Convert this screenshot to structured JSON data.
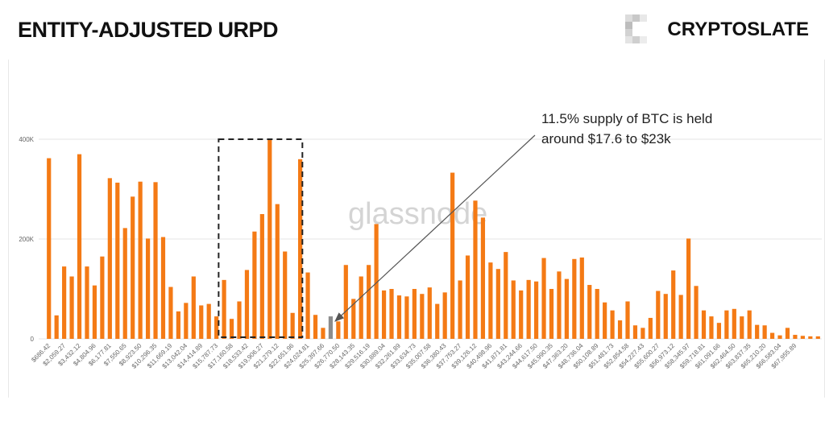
{
  "header": {
    "title": "ENTITY-ADJUSTED URPD",
    "brand": "CRYPTOSLATE"
  },
  "colors": {
    "bar": "#f47a15",
    "highlight_bar": "#8c8c8c",
    "gridline": "#e6e6e6"
  },
  "chart_data": {
    "type": "bar",
    "title": "",
    "xlabel": "",
    "ylabel": "",
    "ylim": [
      0,
      400000
    ],
    "yticks": [
      {
        "value": 0,
        "label": "0"
      },
      {
        "value": 200000,
        "label": "200K"
      },
      {
        "value": 400000,
        "label": "400K"
      }
    ],
    "x_tick_labels": [
      "$686.42",
      "$2,059.27",
      "$3,432.12",
      "$4,804.96",
      "$6,177.81",
      "$7,550.65",
      "$8,923.50",
      "$10,296.35",
      "$11,669.19",
      "$13,042.04",
      "$14,414.89",
      "$15,787.73",
      "$17,160.58",
      "$18,533.42",
      "$19,906.27",
      "$21,279.12",
      "$22,651.96",
      "$24,024.81",
      "$25,397.66",
      "$26,770.50",
      "$28,143.35",
      "$29,516.19",
      "$30,889.04",
      "$32,261.89",
      "$33,634.73",
      "$35,007.58",
      "$36,380.43",
      "$37,753.27",
      "$39,126.12",
      "$40,498.96",
      "$41,871.81",
      "$43,244.66",
      "$44,617.50",
      "$45,990.35",
      "$47,363.20",
      "$48,736.04",
      "$50,108.89",
      "$51,481.73",
      "$52,854.58",
      "$54,227.43",
      "$55,600.27",
      "$56,973.12",
      "$58,345.97",
      "$59,718.81",
      "$61,091.66",
      "$62,464.50",
      "$63,837.35",
      "$65,210.20",
      "$66,583.04",
      "$67,955.89"
    ],
    "highlight_index": 37,
    "values": [
      362000,
      47000,
      145000,
      125000,
      370000,
      145000,
      107000,
      165000,
      322000,
      313000,
      222000,
      285000,
      315000,
      201000,
      314000,
      204000,
      104000,
      55000,
      72000,
      125000,
      67000,
      70000,
      45000,
      118000,
      40000,
      75000,
      138000,
      215000,
      250000,
      400000,
      270000,
      175000,
      52000,
      360000,
      133000,
      48000,
      22000,
      45000,
      35000,
      148000,
      80000,
      125000,
      148000,
      230000,
      97000,
      100000,
      87000,
      85000,
      100000,
      90000,
      103000,
      70000,
      93000,
      333000,
      117000,
      167000,
      277000,
      243000,
      153000,
      140000,
      174000,
      117000,
      97000,
      118000,
      115000,
      162000,
      100000,
      135000,
      120000,
      160000,
      163000,
      108000,
      100000,
      73000,
      57000,
      37000,
      75000,
      27000,
      22000,
      42000,
      96000,
      90000,
      137000,
      88000,
      201000,
      106000,
      57000,
      45000,
      32000,
      57000,
      60000,
      45000,
      57000,
      28000,
      27000,
      12000,
      7000,
      22000,
      8000,
      6000,
      5000,
      5000
    ]
  },
  "annotation": {
    "text": "11.5% supply of BTC is held around $17.6 to $23k"
  },
  "watermark": "glassnode"
}
